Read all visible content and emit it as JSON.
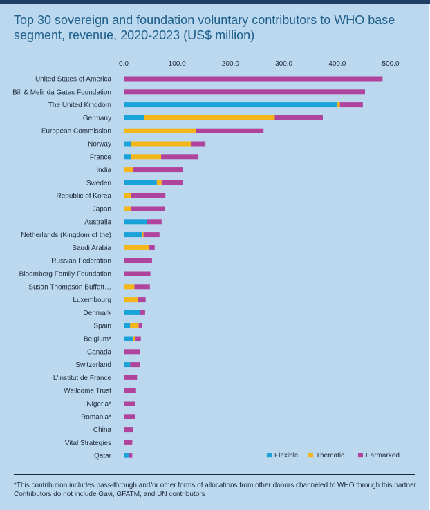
{
  "title": "Top 30 sovereign and foundation voluntary contributors to WHO base segment, revenue, 2020-2023 (US$ million)",
  "footnote": "*This contribution includes pass-through and/or other forms of allocations from other donors channeled to WHO through this partner. Contributors do not  include Gavi, GFATM, and UN contributors",
  "chart_data": {
    "type": "bar",
    "orientation": "horizontal",
    "stacked": true,
    "title": "Top 30 sovereign and foundation voluntary contributors to WHO base segment, revenue, 2020-2023 (US$ million)",
    "xlim": [
      0,
      500
    ],
    "ticks": [
      "0.0",
      "100.0",
      "200.0",
      "300.0",
      "400.0",
      "500.0"
    ],
    "tick_values": [
      0,
      100,
      200,
      300,
      400,
      500
    ],
    "legend_position": "bottom-right",
    "categories": [
      "United States of America",
      "Bill & Melinda Gates Foundation",
      "The United Kingdom",
      "Germany",
      "European Commission",
      "Norway",
      "France",
      "India",
      "Sweden",
      "Republic of Korea",
      "Japan",
      "Australia",
      "Netherlands (Kingdom of the)",
      "Saudi Arabia",
      "Russian Federation",
      "Bloomberg Family Foundation",
      "Susan Thompson Buffett…",
      "Luxembourg",
      "Denmark",
      "Spain",
      "Belgium*",
      "Canada",
      "Switzerland",
      "L'institut de France",
      "Wellcome Trust",
      "Nigeria*",
      "Romania*",
      "China",
      "Vital Strategies",
      "Qatar"
    ],
    "series": [
      {
        "name": "Flexible",
        "color": "#1aa3d9",
        "values": [
          0,
          0,
          400,
          38,
          0,
          14,
          14,
          0,
          62,
          0,
          0,
          43,
          35,
          0,
          0,
          0,
          0,
          0,
          30,
          12,
          17,
          0,
          12,
          0,
          0,
          0,
          0,
          0,
          0,
          10
        ]
      },
      {
        "name": "Thematic",
        "color": "#f4b619",
        "values": [
          0,
          0,
          5,
          245,
          135,
          113,
          56,
          17,
          9,
          14,
          13,
          0,
          2,
          48,
          0,
          0,
          20,
          27,
          0,
          16,
          5,
          0,
          0,
          0,
          0,
          0,
          0,
          0,
          0,
          0
        ]
      },
      {
        "name": "Earmarked",
        "color": "#b0449c",
        "values": [
          485,
          452,
          43,
          90,
          127,
          26,
          70,
          94,
          40,
          64,
          64,
          28,
          30,
          10,
          53,
          50,
          29,
          14,
          10,
          6,
          10,
          31,
          18,
          25,
          23,
          22,
          21,
          17,
          16,
          6
        ]
      }
    ]
  }
}
